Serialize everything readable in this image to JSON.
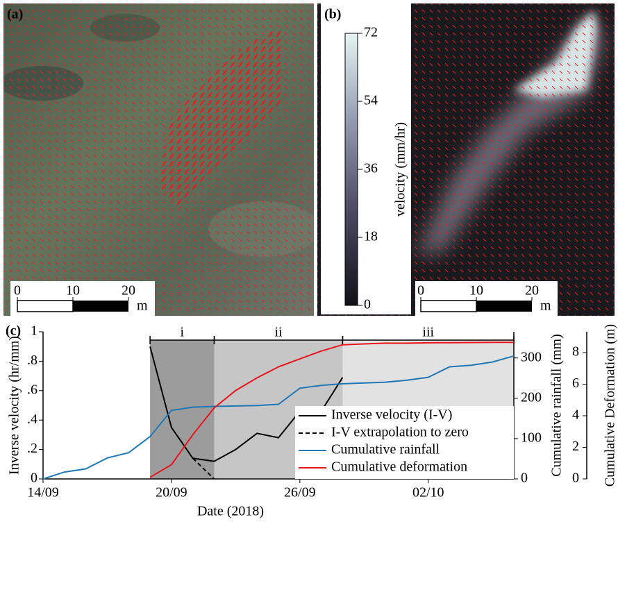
{
  "chart_data": [
    {
      "type": "image",
      "label": "(a)",
      "scalebar": {
        "xlim": [
          0,
          20
        ],
        "xticks": [
          0,
          10,
          20
        ],
        "unit": "m"
      }
    },
    {
      "type": "image",
      "label": "(b)",
      "colorbar": {
        "title": "velocity (mm/hr)",
        "lim": [
          0,
          72
        ],
        "ticks": [
          0,
          18,
          36,
          54,
          72
        ]
      },
      "scalebar": {
        "xlim": [
          0,
          20
        ],
        "xticks": [
          0,
          10,
          20
        ],
        "unit": "m"
      }
    },
    {
      "type": "line",
      "label": "(c)",
      "xlabel": "Date (2018)",
      "ylabel": "Inverse velocity (hr/mm)",
      "y2label": "Cumulative rainfall (mm)",
      "y3label": "Cumulative Deformation (m)",
      "xlim": [
        "2018-09-14",
        "2018-10-06"
      ],
      "xticks": [
        {
          "value": "2018-09-14",
          "label": "14/09"
        },
        {
          "value": "2018-09-20",
          "label": "20/09"
        },
        {
          "value": "2018-09-26",
          "label": "26/09"
        },
        {
          "value": "2018-10-02",
          "label": "02/10"
        }
      ],
      "ylim": [
        0,
        1
      ],
      "yticks": [
        0,
        {
          "value": 0.2,
          "label": ".2"
        },
        {
          "value": 0.4,
          "label": ".4"
        },
        {
          "value": 0.6,
          "label": ".6"
        },
        {
          "value": 0.8,
          "label": ".8"
        },
        1
      ],
      "y2lim": [
        0,
        365
      ],
      "y2ticks": [
        0,
        100,
        200,
        300
      ],
      "y3lim": [
        0,
        9.32
      ],
      "y3ticks": [
        0,
        2,
        4,
        6,
        8
      ],
      "phases": [
        {
          "label": "i",
          "start": "2018-09-19",
          "end": "2018-09-22",
          "color": "#9c9c9c"
        },
        {
          "label": "ii",
          "start": "2018-09-22",
          "end": "2018-09-28",
          "color": "#c6c6c6"
        },
        {
          "label": "iii",
          "start": "2018-09-28",
          "end": "2018-10-06",
          "color": "#e2e2e2"
        }
      ],
      "legend": "lower right",
      "series": [
        {
          "name": "Inverse velocity (I-V)",
          "color": "#000000",
          "linestyle": "solid",
          "axis": "y",
          "x": [
            "2018-09-19",
            "2018-09-20",
            "2018-09-21",
            "2018-09-22",
            "2018-09-23",
            "2018-09-24",
            "2018-09-25",
            "2018-09-26",
            "2018-09-27",
            "2018-09-28"
          ],
          "values": [
            0.9,
            0.35,
            0.14,
            0.12,
            0.2,
            0.31,
            0.28,
            0.46,
            0.46,
            0.69
          ]
        },
        {
          "name": "I-V extrapolation to zero",
          "color": "#000000",
          "linestyle": "dashed",
          "axis": "y",
          "x": [
            "2018-09-21",
            "2018-09-22"
          ],
          "values": [
            0.14,
            0
          ]
        },
        {
          "name": "Cumulative rainfall",
          "color": "#1f77b4",
          "linestyle": "solid",
          "axis": "y2",
          "x": [
            "2018-09-14",
            "2018-09-15",
            "2018-09-16",
            "2018-09-17",
            "2018-09-18",
            "2018-09-19",
            "2018-09-20",
            "2018-09-21",
            "2018-09-22",
            "2018-09-23",
            "2018-09-24",
            "2018-09-25",
            "2018-09-26",
            "2018-09-27",
            "2018-09-28",
            "2018-09-29",
            "2018-09-30",
            "2018-10-01",
            "2018-10-02",
            "2018-10-03",
            "2018-10-04",
            "2018-10-05",
            "2018-10-06"
          ],
          "values": [
            0,
            17,
            25,
            52,
            65,
            105,
            170,
            178,
            180,
            181,
            182,
            185,
            225,
            232,
            236,
            238,
            240,
            245,
            252,
            278,
            282,
            290,
            305
          ]
        },
        {
          "name": "Cumulative deformation",
          "color": "#e8141c",
          "linestyle": "solid",
          "axis": "y3",
          "x": [
            "2018-09-19",
            "2018-09-20",
            "2018-09-21",
            "2018-09-22",
            "2018-09-23",
            "2018-09-24",
            "2018-09-25",
            "2018-09-26",
            "2018-09-27",
            "2018-09-28",
            "2018-09-29",
            "2018-09-30",
            "2018-10-01",
            "2018-10-02",
            "2018-10-03",
            "2018-10-04",
            "2018-10-05",
            "2018-10-06"
          ],
          "values": [
            0.1,
            0.9,
            2.8,
            4.5,
            5.6,
            6.4,
            7.1,
            7.6,
            8.1,
            8.5,
            8.55,
            8.6,
            8.6,
            8.62,
            8.63,
            8.64,
            8.65,
            8.65
          ]
        }
      ]
    }
  ]
}
